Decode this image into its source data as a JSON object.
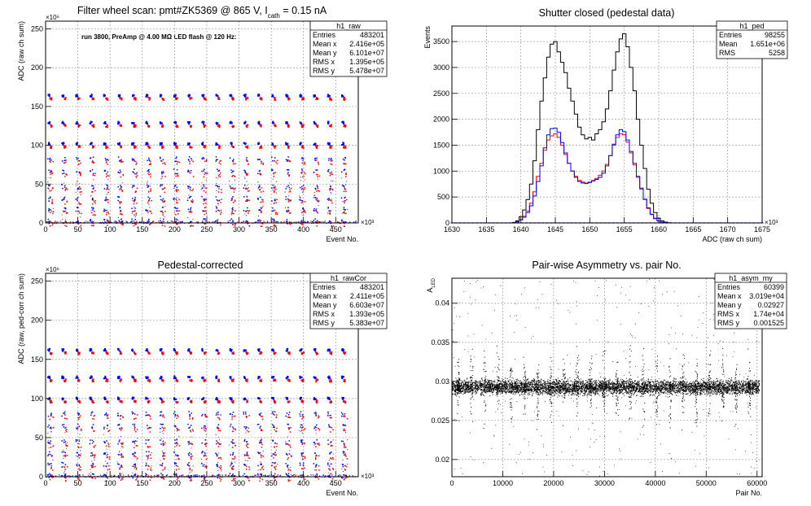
{
  "colors": {
    "background": "#ffffff",
    "frame": "#000000",
    "grid": "#9a9a9a",
    "black": "#000000",
    "red": "#ff0000",
    "blue": "#0000ff"
  },
  "chart_data": [
    {
      "id": "p1",
      "type": "scatter",
      "title": "Filter wheel scan: pmt#ZK5369 @   865 V, I",
      "title_sub": "cath",
      "title_tail": " = 0.15 nA",
      "annotation": "run 3800, PreAmp @ 4.00 MΩ LED flash @  120 Hz:",
      "xlabel": "Event No.",
      "ylabel": "ADC (raw ch sum)",
      "x_exponent": "×10³",
      "y_exponent": "×10⁶",
      "xlim": [
        0,
        485
      ],
      "ylim": [
        0,
        260
      ],
      "xticks": [
        0,
        50,
        100,
        150,
        200,
        250,
        300,
        350,
        400,
        450
      ],
      "yticks": [
        0,
        50,
        100,
        150,
        200,
        250
      ],
      "grid": true,
      "stats": {
        "name": "h1_raw",
        "rows": [
          [
            "Entries",
            "483201"
          ],
          [
            "Mean x",
            "2.416e+05"
          ],
          [
            "Mean y",
            "6.101e+07"
          ],
          [
            "RMS x",
            "1.395e+05"
          ],
          [
            "RMS y",
            "5.478e+07"
          ]
        ]
      },
      "pattern": {
        "period": 21.7,
        "start": 2,
        "width": 11,
        "levels": [
          165,
          130,
          103,
          83,
          67,
          47,
          32,
          18,
          3
        ]
      },
      "series": [
        {
          "color": "blue"
        },
        {
          "color": "red"
        }
      ]
    },
    {
      "id": "p2",
      "type": "line",
      "title": "Shutter closed (pedestal data)",
      "xlabel": "ADC (raw ch sum)",
      "ylabel": "Events",
      "x_exponent": "×10³",
      "xlim": [
        1630,
        1675
      ],
      "ylim": [
        0,
        3800
      ],
      "xticks": [
        1630,
        1635,
        1640,
        1645,
        1650,
        1655,
        1660,
        1665,
        1670,
        1675
      ],
      "yticks": [
        0,
        500,
        1000,
        1500,
        2000,
        2500,
        3000,
        3500
      ],
      "grid": true,
      "stats": {
        "name": "h1_ped",
        "rows": [
          [
            "Entries",
            "98255"
          ],
          [
            "Mean",
            "1.651e+06"
          ],
          [
            "RMS",
            "5258"
          ]
        ]
      },
      "series": [
        {
          "color": "black",
          "x": [
            1638.5,
            1639,
            1639.5,
            1640,
            1640.5,
            1641,
            1641.5,
            1642,
            1642.5,
            1643,
            1643.5,
            1644,
            1644.5,
            1645,
            1645.5,
            1646,
            1646.5,
            1647,
            1647.5,
            1648,
            1648.5,
            1649,
            1649.5,
            1650,
            1650.5,
            1651,
            1651.5,
            1652,
            1652.5,
            1653,
            1653.5,
            1654,
            1654.5,
            1655,
            1655.5,
            1656,
            1656.5,
            1657,
            1657.5,
            1658,
            1658.5,
            1659,
            1659.5,
            1660,
            1660.5,
            1661,
            1661.5,
            1662,
            1662.5
          ],
          "y": [
            0,
            10,
            40,
            120,
            250,
            450,
            750,
            1200,
            1800,
            2350,
            2800,
            3200,
            3450,
            3500,
            3300,
            3100,
            2900,
            2600,
            2350,
            2100,
            1850,
            1700,
            1620,
            1650,
            1600,
            1720,
            1800,
            1950,
            2200,
            2550,
            2950,
            3300,
            3550,
            3650,
            3400,
            3000,
            2550,
            2000,
            1500,
            1050,
            650,
            380,
            200,
            90,
            40,
            15,
            5,
            0,
            0
          ]
        },
        {
          "color": "red",
          "x": [
            1638.5,
            1639,
            1639.5,
            1640,
            1640.5,
            1641,
            1641.5,
            1642,
            1642.5,
            1643,
            1643.5,
            1644,
            1644.5,
            1645,
            1645.5,
            1646,
            1646.5,
            1647,
            1647.5,
            1648,
            1648.5,
            1649,
            1649.5,
            1650,
            1650.5,
            1651,
            1651.5,
            1652,
            1652.5,
            1653,
            1653.5,
            1654,
            1654.5,
            1655,
            1655.5,
            1656,
            1656.5,
            1657,
            1657.5,
            1658,
            1658.5,
            1659,
            1659.5,
            1660,
            1660.5,
            1661,
            1661.5,
            1662,
            1662.5
          ],
          "y": [
            0,
            5,
            20,
            60,
            130,
            230,
            380,
            600,
            900,
            1150,
            1400,
            1600,
            1680,
            1720,
            1650,
            1500,
            1320,
            1150,
            1000,
            900,
            820,
            790,
            770,
            790,
            820,
            860,
            920,
            1000,
            1130,
            1300,
            1500,
            1650,
            1720,
            1700,
            1560,
            1350,
            1120,
            880,
            650,
            450,
            280,
            160,
            80,
            35,
            15,
            5,
            0,
            0,
            0
          ]
        },
        {
          "color": "blue",
          "x": [
            1638.5,
            1639,
            1639.5,
            1640,
            1640.5,
            1641,
            1641.5,
            1642,
            1642.5,
            1643,
            1643.5,
            1644,
            1644.5,
            1645,
            1645.5,
            1646,
            1646.5,
            1647,
            1647.5,
            1648,
            1648.5,
            1649,
            1649.5,
            1650,
            1650.5,
            1651,
            1651.5,
            1652,
            1652.5,
            1653,
            1653.5,
            1654,
            1654.5,
            1655,
            1655.5,
            1656,
            1656.5,
            1657,
            1657.5,
            1658,
            1658.5,
            1659,
            1659.5,
            1660,
            1660.5,
            1661,
            1661.5,
            1662,
            1662.5
          ],
          "y": [
            0,
            5,
            20,
            60,
            110,
            200,
            330,
            520,
            800,
            1100,
            1450,
            1700,
            1820,
            1830,
            1750,
            1550,
            1350,
            1150,
            1000,
            880,
            800,
            770,
            760,
            780,
            810,
            840,
            880,
            960,
            1100,
            1300,
            1520,
            1700,
            1800,
            1760,
            1600,
            1380,
            1150,
            900,
            670,
            460,
            290,
            170,
            90,
            40,
            15,
            5,
            0,
            0,
            0
          ]
        }
      ]
    },
    {
      "id": "p3",
      "type": "scatter",
      "title": "Pedestal-corrected",
      "xlabel": "Event No.",
      "ylabel": "ADC (raw, ped-corr ch sum)",
      "x_exponent": "×10³",
      "y_exponent": "×10⁶",
      "xlim": [
        0,
        485
      ],
      "ylim": [
        0,
        260
      ],
      "xticks": [
        0,
        50,
        100,
        150,
        200,
        250,
        300,
        350,
        400,
        450
      ],
      "yticks": [
        0,
        50,
        100,
        150,
        200,
        250
      ],
      "grid": true,
      "stats": {
        "name": "h1_rawCor",
        "rows": [
          [
            "Entries",
            "483201"
          ],
          [
            "Mean x",
            "2.411e+05"
          ],
          [
            "Mean y",
            "6.603e+07"
          ],
          [
            "RMS x",
            "1.393e+05"
          ],
          [
            "RMS y",
            "5.383e+07"
          ]
        ]
      },
      "pattern": {
        "period": 21.7,
        "start": 2,
        "width": 11,
        "levels": [
          163,
          128,
          101,
          81,
          65,
          45,
          30,
          16,
          2
        ]
      },
      "series": [
        {
          "color": "blue"
        },
        {
          "color": "red"
        }
      ]
    },
    {
      "id": "p4",
      "type": "scatter",
      "title": "Pair-wise Asymmetry vs. pair No.",
      "xlabel": "Pair No.",
      "ylabel": "A",
      "ylabel_sub": "LED",
      "xlim": [
        0,
        61000
      ],
      "ylim": [
        0.0178,
        0.0432
      ],
      "xticks": [
        0,
        10000,
        20000,
        30000,
        40000,
        50000,
        60000
      ],
      "yticks": [
        0.02,
        0.025,
        0.03,
        0.035,
        0.04
      ],
      "grid": true,
      "stats": {
        "name": "h1_asym_my",
        "rows": [
          [
            "Entries",
            "60399"
          ],
          [
            "Mean x",
            "3.019e+04"
          ],
          [
            "Mean y",
            "0.02927"
          ],
          [
            "RMS x",
            "1.74e+04"
          ],
          [
            "RMS y",
            "0.001525"
          ]
        ]
      },
      "pattern": {
        "center": 0.0293,
        "band": 0.0009,
        "spike_period": 2600,
        "spike_start": 1200
      },
      "series": [
        {
          "color": "black"
        }
      ]
    }
  ]
}
